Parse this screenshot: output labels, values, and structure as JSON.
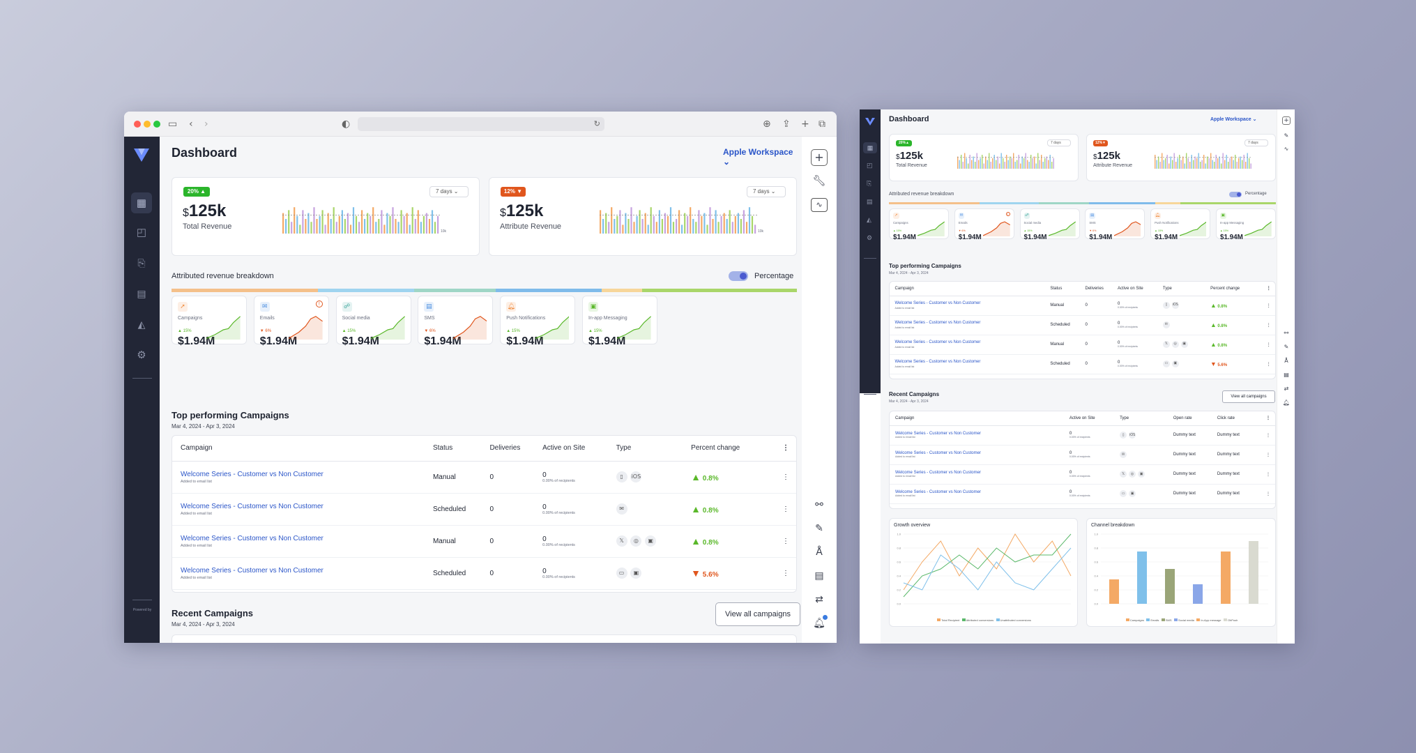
{
  "app": {
    "title": "Dashboard",
    "workspace": "Apple Workspace"
  },
  "revenue_cards": [
    {
      "badge": "20%",
      "badge_color": "#2bb52b",
      "range": "7 days",
      "currency": "$",
      "value": "125k",
      "label": "Total Revenue",
      "axis": "10k"
    },
    {
      "badge": "12%",
      "badge_color": "#e0561d",
      "range": "7 days",
      "currency": "$",
      "value": "125k",
      "label": "Attribute Revenue",
      "axis": "10k"
    }
  ],
  "breakdown": {
    "title": "Attributed revenue breakdown",
    "toggle_label": "Percentage",
    "segments": [
      {
        "color": "#f4c08a",
        "pct": 0.234
      },
      {
        "color": "#9fd4ef",
        "pct": 0.154
      },
      {
        "color": "#9fd6c6",
        "pct": 0.13
      },
      {
        "color": "#7fbbea",
        "pct": 0.17
      },
      {
        "color": "#f7d69a",
        "pct": 0.065
      },
      {
        "color": "#a9d66a",
        "pct": 0.247
      }
    ]
  },
  "channels": [
    {
      "name": "Campaigns",
      "change": "15%",
      "dir": "up",
      "value": "$1.94M",
      "color": "#5ab82a",
      "icon": "megaphone-icon",
      "ic": "#f08a3c"
    },
    {
      "name": "Emails",
      "change": "6%",
      "dir": "down",
      "value": "$1.94M",
      "color": "#e0561d",
      "icon": "email-icon",
      "ic": "#4d8fe0",
      "alert": true
    },
    {
      "name": "Social media",
      "change": "15%",
      "dir": "up",
      "value": "$1.94M",
      "color": "#5ab82a",
      "icon": "social-icon",
      "ic": "#3aa59a"
    },
    {
      "name": "SMS",
      "change": "6%",
      "dir": "down",
      "value": "$1.94M",
      "color": "#e0561d",
      "icon": "sms-icon",
      "ic": "#4d8fe0"
    },
    {
      "name": "Push Notifications",
      "change": "15%",
      "dir": "up",
      "value": "$1.94M",
      "color": "#5ab82a",
      "icon": "push-icon",
      "ic": "#f08a3c"
    },
    {
      "name": "In-app Messaging",
      "change": "15%",
      "dir": "up",
      "value": "$1.94M",
      "color": "#5ab82a",
      "icon": "inapp-icon",
      "ic": "#5ab82a"
    }
  ],
  "top_campaigns": {
    "title": "Top performing Campaigns",
    "date": "Mar 4, 2024 - Apr 3, 2024",
    "headers": [
      "Campaign",
      "Status",
      "Deliveries",
      "Active on Site",
      "Type",
      "Percent change"
    ],
    "rows": [
      {
        "name": "Welcome Series - Customer vs Non Customer",
        "sub": "Added to email list",
        "status": "Manual",
        "deliveries": "0",
        "active": "0",
        "active_sub": "0.00% of recipients",
        "types": [
          "▯",
          "iOS"
        ],
        "change": "0.8%",
        "dir": "up"
      },
      {
        "name": "Welcome Series - Customer vs Non Customer",
        "sub": "Added to email list",
        "status": "Scheduled",
        "deliveries": "0",
        "active": "0",
        "active_sub": "0.00% of recipients",
        "types": [
          "✉"
        ],
        "change": "0.8%",
        "dir": "up"
      },
      {
        "name": "Welcome Series - Customer vs Non Customer",
        "sub": "Added to email list",
        "status": "Manual",
        "deliveries": "0",
        "active": "0",
        "active_sub": "0.00% of recipients",
        "types": [
          "𝕏",
          "◎",
          "▣"
        ],
        "change": "0.8%",
        "dir": "up"
      },
      {
        "name": "Welcome Series - Customer vs Non Customer",
        "sub": "Added to email list",
        "status": "Scheduled",
        "deliveries": "0",
        "active": "0",
        "active_sub": "0.00% of recipients",
        "types": [
          "▭",
          "▣"
        ],
        "change": "5.6%",
        "dir": "down"
      }
    ]
  },
  "recent": {
    "title": "Recent Campaigns",
    "date": "Mar 4, 2024 - Apr 3, 2024",
    "button": "View all campaigns",
    "headers": [
      "Campaign",
      "Active on Site",
      "Type",
      "Open rate",
      "Click rate"
    ],
    "rows": [
      {
        "name": "Welcome Series - Customer vs Non Customer",
        "sub": "Added to email list",
        "active": "0",
        "active_sub": "0.00% of recipients",
        "types": [
          "▯",
          "iOS"
        ],
        "open": "Dummy text",
        "click": "Dummy text"
      },
      {
        "name": "Welcome Series - Customer vs Non Customer",
        "sub": "Added to email list",
        "active": "0",
        "active_sub": "0.00% of recipients",
        "types": [
          "✉"
        ],
        "open": "Dummy text",
        "click": "Dummy text"
      },
      {
        "name": "Welcome Series - Customer vs Non Customer",
        "sub": "Added to email list",
        "active": "0",
        "active_sub": "0.00% of recipients",
        "types": [
          "𝕏",
          "◎",
          "▣"
        ],
        "open": "Dummy text",
        "click": "Dummy text"
      },
      {
        "name": "Welcome Series - Customer vs Non Customer",
        "sub": "Added to email list",
        "active": "0",
        "active_sub": "0.00% of recipients",
        "types": [
          "▭",
          "▣"
        ],
        "open": "Dummy text",
        "click": "Dummy text"
      }
    ]
  },
  "chart_data": [
    {
      "type": "bar",
      "title": "",
      "categories": [
        "1",
        "2",
        "3",
        "4",
        "5",
        "6",
        "7",
        "8",
        "9",
        "10",
        "11",
        "12",
        "13",
        "14",
        "15",
        "16",
        "17",
        "18",
        "19",
        "20",
        "21",
        "22",
        "23",
        "24",
        "25",
        "26",
        "27",
        "28",
        "29",
        "30",
        "31",
        "32",
        "33",
        "34",
        "35",
        "36",
        "37",
        "38",
        "39",
        "40",
        "41",
        "42",
        "43",
        "44",
        "45",
        "46",
        "47",
        "48",
        "49",
        "50",
        "51",
        "52",
        "53",
        "54",
        "55",
        "56"
      ],
      "values": [
        7,
        5,
        8,
        4,
        9,
        6,
        3,
        8,
        5,
        7,
        4,
        9,
        5,
        6,
        8,
        3,
        7,
        5,
        9,
        4,
        6,
        8,
        5,
        7,
        3,
        9,
        6,
        4,
        8,
        5,
        7,
        6,
        9,
        4,
        5,
        8,
        3,
        7,
        6,
        9,
        5,
        4,
        8,
        6,
        7,
        3,
        9,
        5,
        8,
        4,
        6,
        7,
        5,
        8,
        4,
        6
      ],
      "colors": [
        "#f4a965",
        "#7fc0ea",
        "#a9d66a",
        "#c7a3e0"
      ],
      "ylim": [
        0,
        10
      ]
    },
    {
      "type": "line",
      "title": "Growth overview",
      "series": [
        {
          "name": "Total Recipient",
          "color": "#f4a965",
          "values": [
            0.2,
            0.6,
            0.9,
            0.4,
            0.8,
            0.5,
            1.0,
            0.6,
            0.9,
            0.4
          ]
        },
        {
          "name": "Attributed conversions",
          "color": "#5ab86a",
          "values": [
            0.1,
            0.4,
            0.5,
            0.7,
            0.5,
            0.8,
            0.6,
            0.7,
            0.7,
            1.0
          ]
        },
        {
          "name": "Unattributed conversions",
          "color": "#7fc0ea",
          "values": [
            0.3,
            0.2,
            0.7,
            0.5,
            0.2,
            0.6,
            0.3,
            0.2,
            0.5,
            0.8
          ]
        }
      ],
      "ylim": [
        0,
        1
      ]
    },
    {
      "type": "bar",
      "title": "Channel breakdown",
      "categories": [
        "Campaigns",
        "Emails",
        "SMS",
        "Social media",
        "In-App message",
        "OhPush"
      ],
      "values": [
        0.35,
        0.75,
        0.5,
        0.28,
        0.75,
        0.9
      ],
      "colors": [
        "#f4a965",
        "#7fc0ea",
        "#9aa578",
        "#8aa6e8",
        "#f4a965",
        "#d9dad0"
      ],
      "ylim": [
        0,
        1
      ]
    }
  ],
  "sidebar": {
    "footer": "Powered by"
  }
}
